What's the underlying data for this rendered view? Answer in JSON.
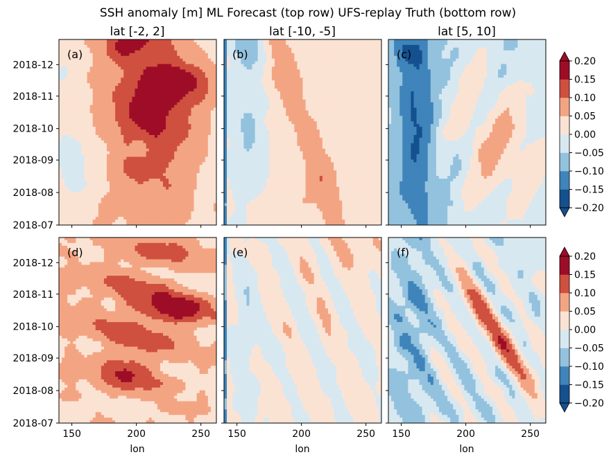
{
  "figure": {
    "title": "SSH anomaly [m] ML Forecast (top row) UFS-replay Truth (bottom row)"
  },
  "colorbar": {
    "ticks": [
      "0.20",
      "0.15",
      "0.10",
      "0.05",
      "0.00",
      "−0.05",
      "−0.10",
      "−0.15",
      "−0.20"
    ],
    "levels": [
      -0.2,
      -0.15,
      -0.1,
      -0.05,
      0.0,
      0.05,
      0.1,
      0.15,
      0.2
    ],
    "colors": [
      "#15508f",
      "#3f84ba",
      "#93c2de",
      "#d8e8f1",
      "#fbe3d4",
      "#f3a583",
      "#cf503f",
      "#9e0d27"
    ],
    "extend": "both"
  },
  "axes": {
    "xlabel": "lon",
    "xticks": [
      "150",
      "200",
      "250"
    ],
    "yticks": [
      "2018-07",
      "2018-08",
      "2018-09",
      "2018-10",
      "2018-11",
      "2018-12"
    ]
  },
  "chart_data": [
    {
      "type": "heatmap",
      "panel_label": "(a)",
      "column_title": "lat [-2, 2]",
      "row": "ML Forecast",
      "x_range": [
        140,
        262
      ],
      "y_range": [
        "2018-07-01",
        "2018-12-25"
      ],
      "z_range": [
        -0.2,
        0.2
      ]
    },
    {
      "type": "heatmap",
      "panel_label": "(b)",
      "column_title": "lat [-10, -5]",
      "row": "ML Forecast",
      "x_range": [
        140,
        262
      ],
      "y_range": [
        "2018-07-01",
        "2018-12-25"
      ],
      "z_range": [
        -0.2,
        0.2
      ]
    },
    {
      "type": "heatmap",
      "panel_label": "(c)",
      "column_title": "lat [5, 10]",
      "row": "ML Forecast",
      "x_range": [
        140,
        262
      ],
      "y_range": [
        "2018-07-01",
        "2018-12-25"
      ],
      "z_range": [
        -0.2,
        0.2
      ]
    },
    {
      "type": "heatmap",
      "panel_label": "(d)",
      "column_title": "lat [-2, 2]",
      "row": "UFS-replay Truth",
      "x_range": [
        140,
        262
      ],
      "y_range": [
        "2018-07-01",
        "2018-12-25"
      ],
      "z_range": [
        -0.2,
        0.2
      ]
    },
    {
      "type": "heatmap",
      "panel_label": "(e)",
      "column_title": "lat [-10, -5]",
      "row": "UFS-replay Truth",
      "x_range": [
        140,
        262
      ],
      "y_range": [
        "2018-07-01",
        "2018-12-25"
      ],
      "z_range": [
        -0.2,
        0.2
      ]
    },
    {
      "type": "heatmap",
      "panel_label": "(f)",
      "column_title": "lat [5, 10]",
      "row": "UFS-replay Truth",
      "x_range": [
        140,
        262
      ],
      "y_range": [
        "2018-07-01",
        "2018-12-25"
      ],
      "z_range": [
        -0.2,
        0.2
      ]
    }
  ]
}
